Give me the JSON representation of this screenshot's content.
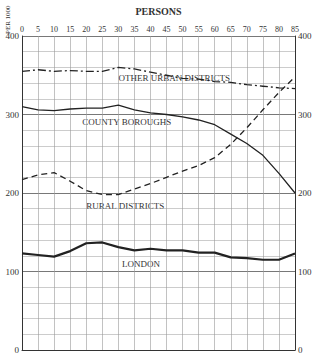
{
  "chart_data": {
    "type": "line",
    "title": "PERSONS",
    "y_label": "PER 1000",
    "x": [
      0,
      5,
      10,
      15,
      20,
      25,
      30,
      35,
      40,
      45,
      50,
      55,
      60,
      65,
      70,
      75,
      80,
      85
    ],
    "xlim": [
      0,
      85
    ],
    "xticks": [
      0,
      5,
      10,
      15,
      20,
      25,
      30,
      35,
      40,
      45,
      50,
      55,
      60,
      65,
      70,
      75,
      80,
      85
    ],
    "ylim": [
      0,
      400
    ],
    "yticks": [
      0,
      100,
      200,
      300,
      400
    ],
    "y2lim": [
      0,
      400
    ],
    "y2ticks": [
      0,
      100,
      200,
      300,
      400
    ],
    "grid": true,
    "series": [
      {
        "name": "OTHER URBAN DISTRICTS",
        "color": "#222222",
        "line_style": "dashdot",
        "values": [
          355,
          357,
          355,
          356,
          355,
          355,
          360,
          358,
          354,
          350,
          346,
          345,
          342,
          341,
          338,
          336,
          334,
          333
        ]
      },
      {
        "name": "COUNTY BOROUGHS",
        "color": "#222222",
        "line_style": "solid",
        "values": [
          310,
          306,
          305,
          307,
          308,
          308,
          312,
          306,
          302,
          300,
          297,
          293,
          287,
          275,
          263,
          248,
          225,
          200
        ]
      },
      {
        "name": "RURAL DISTRICTS",
        "color": "#222222",
        "line_style": "dashed",
        "values": [
          217,
          223,
          226,
          215,
          203,
          198,
          198,
          205,
          212,
          220,
          228,
          235,
          245,
          262,
          283,
          306,
          328,
          348
        ]
      },
      {
        "name": "LONDON",
        "color": "#222222",
        "line_style": "solid",
        "values": [
          123,
          121,
          119,
          126,
          136,
          137,
          131,
          127,
          129,
          127,
          127,
          124,
          124,
          118,
          117,
          115,
          115,
          123
        ]
      }
    ]
  }
}
